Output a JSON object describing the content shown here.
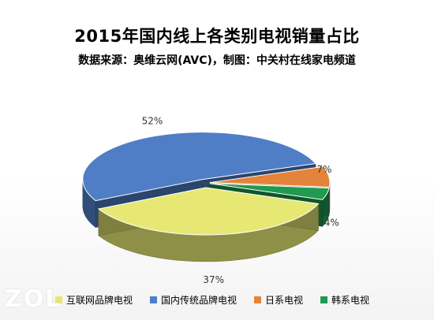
{
  "title": "2015年国内线上各类别电视销量占比",
  "subtitle": "数据来源：奥维云网(AVC)，制图：中关村在线家电频道",
  "watermark": "ZOL",
  "chart_data": {
    "type": "pie",
    "title": "2015年国内线上各类别电视销量占比",
    "subtitle": "数据来源：奥维云网(AVC)，制图：中关村在线家电频道",
    "three_d": true,
    "legend_position": "bottom",
    "slices": [
      {
        "name": "互联网品牌电视",
        "value": 37,
        "label": "37%",
        "color": "#e6e873"
      },
      {
        "name": "国内传统品牌电视",
        "value": 52,
        "label": "52%",
        "color": "#4f7ec6"
      },
      {
        "name": "日系电视",
        "value": 7,
        "label": "7%",
        "color": "#e4833a"
      },
      {
        "name": "韩系电视",
        "value": 4,
        "label": "4%",
        "color": "#1f9a50"
      }
    ]
  }
}
